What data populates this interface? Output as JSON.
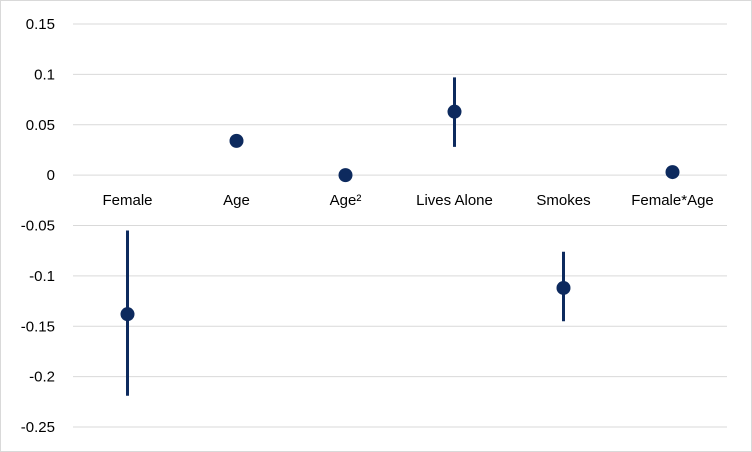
{
  "chart_data": {
    "type": "scatter",
    "title": "",
    "xlabel": "",
    "ylabel": "",
    "ylim": [
      -0.25,
      0.15
    ],
    "y_ticks": [
      0.15,
      0.1,
      0.05,
      0,
      -0.05,
      -0.1,
      -0.15,
      -0.2,
      -0.25
    ],
    "y_tick_labels": [
      "0.15",
      "0.1",
      "0.05",
      "0",
      "-0.05",
      "-0.1",
      "-0.15",
      "-0.2",
      "-0.25"
    ],
    "grid": true,
    "legend": "none",
    "categories": [
      "Female",
      "Age",
      "Age²",
      "Lives Alone",
      "Smokes",
      "Female*Age"
    ],
    "series": [
      {
        "values": [
          -0.138,
          0.034,
          0.0,
          0.063,
          -0.112,
          0.003
        ],
        "error_low": [
          -0.219,
          null,
          null,
          0.028,
          -0.145,
          null
        ],
        "error_high": [
          -0.055,
          null,
          null,
          0.097,
          -0.076,
          null
        ]
      }
    ],
    "colors": {
      "marker": "#0d2a5e",
      "gridline": "#d9d9d9"
    }
  }
}
